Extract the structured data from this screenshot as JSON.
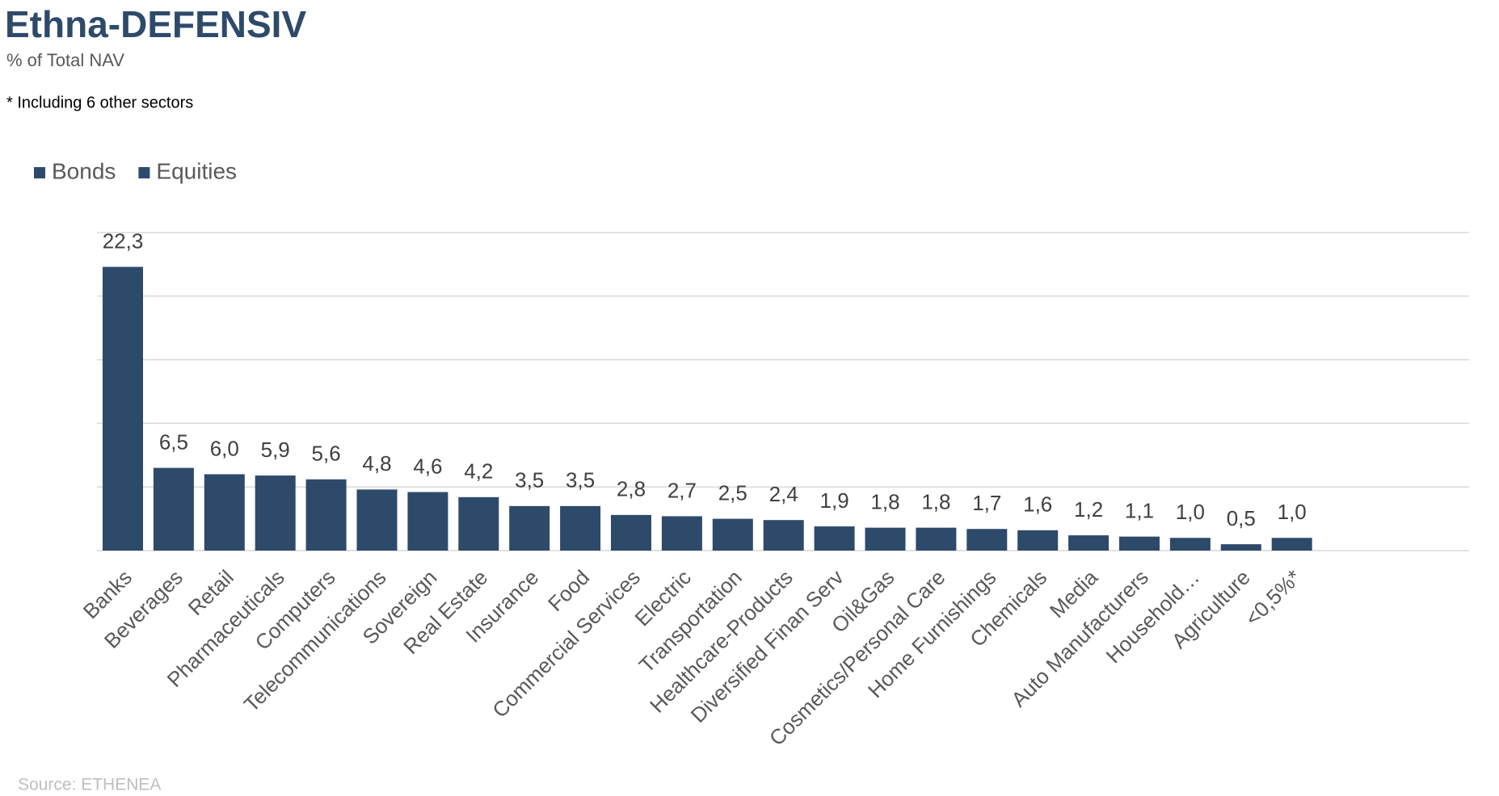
{
  "chart_data": {
    "type": "bar",
    "title": "Ethna-DEFENSIV",
    "subtitle": "% of Total NAV",
    "note": "* Including 6 other sectors",
    "source": "Source: ETHENEA",
    "legend": [
      {
        "name": "Bonds",
        "color": "#2e4a6b"
      },
      {
        "name": "Equities",
        "color": "#2e4a6b"
      }
    ],
    "color": "#2e4a6b",
    "categories": [
      "Banks",
      "Beverages",
      "Retail",
      "Pharmaceuticals",
      "Computers",
      "Telecommunications",
      "Sovereign",
      "Real Estate",
      "Insurance",
      "Food",
      "Commercial Services",
      "Electric",
      "Transportation",
      "Healthcare-Products",
      "Diversified Finan Serv",
      "Oil&Gas",
      "Cosmetics/Personal Care",
      "Home Furnishings",
      "Chemicals",
      "Media",
      "Auto Manufacturers",
      "Household…",
      "Agriculture",
      "<0,5%*"
    ],
    "values": [
      22.3,
      6.5,
      6.0,
      5.9,
      5.6,
      4.8,
      4.6,
      4.2,
      3.5,
      3.5,
      2.8,
      2.7,
      2.5,
      2.4,
      1.9,
      1.8,
      1.8,
      1.7,
      1.6,
      1.2,
      1.1,
      1.0,
      0.5,
      1.0
    ],
    "value_labels": [
      "22,3",
      "6,5",
      "6,0",
      "5,9",
      "5,6",
      "4,8",
      "4,6",
      "4,2",
      "3,5",
      "3,5",
      "2,8",
      "2,7",
      "2,5",
      "2,4",
      "1,9",
      "1,8",
      "1,8",
      "1,7",
      "1,6",
      "1,2",
      "1,1",
      "1,0",
      "0,5",
      "1,0"
    ],
    "ylim": [
      0,
      25
    ],
    "yticks": [
      0,
      5,
      10,
      15,
      20,
      25
    ],
    "grid": true
  }
}
